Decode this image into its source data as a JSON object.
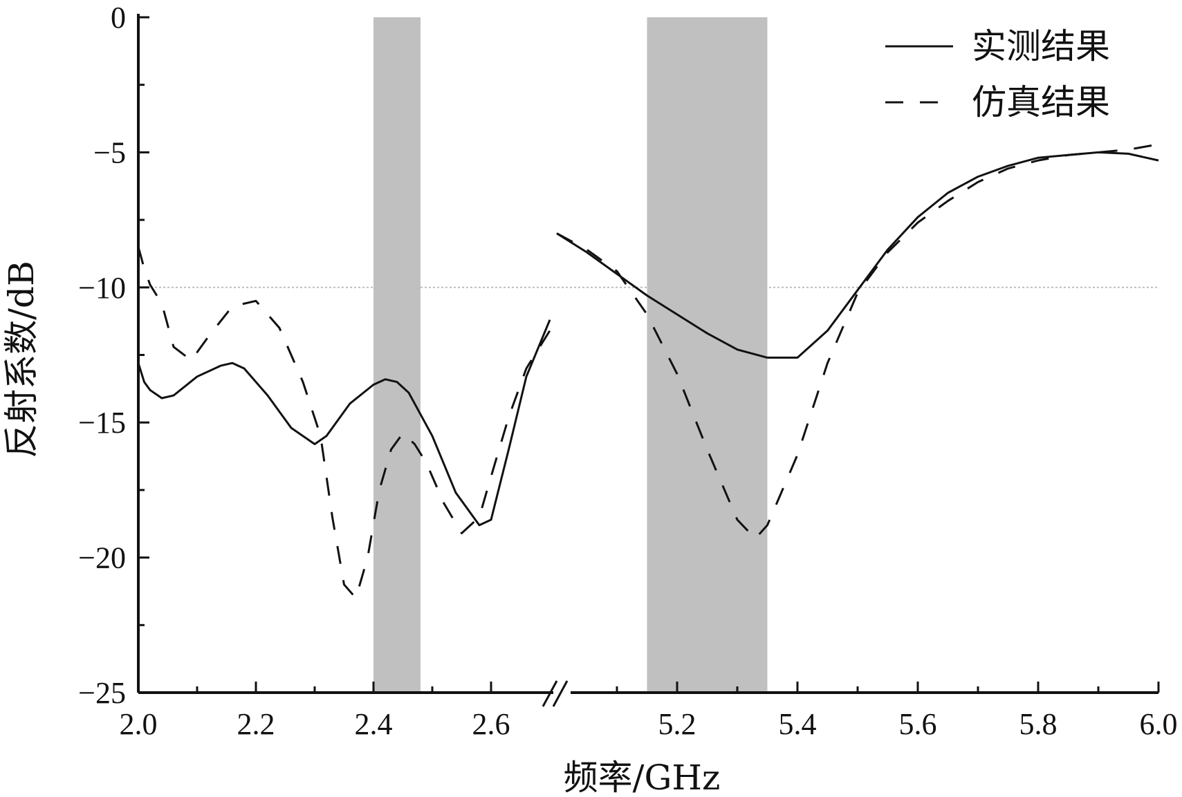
{
  "chart_data": {
    "type": "line",
    "xlabel": "频率/GHz",
    "ylabel": "反射系数/dB",
    "ylim": [
      -25,
      0
    ],
    "yticks": [
      "0",
      "−5",
      "−10",
      "−15",
      "−20",
      "−25"
    ],
    "reference_line_y": -10,
    "broken_x_axis": true,
    "x_segments": [
      {
        "range": [
          2.0,
          2.7
        ],
        "tick_labels": [
          "2.0",
          "2.2",
          "2.4",
          "2.6"
        ],
        "tick_values": [
          2.0,
          2.2,
          2.4,
          2.6
        ]
      },
      {
        "range": [
          5.0,
          6.0
        ],
        "tick_labels": [
          "5.2",
          "5.4",
          "5.6",
          "5.8",
          "6.0"
        ],
        "tick_values": [
          5.2,
          5.4,
          5.6,
          5.8,
          6.0
        ]
      }
    ],
    "shaded_bands": [
      {
        "x": [
          2.4,
          2.48
        ],
        "color": "#c0c0c0"
      },
      {
        "x": [
          5.15,
          5.35
        ],
        "color": "#c0c0c0"
      }
    ],
    "legend": {
      "placement": "top-right"
    },
    "series": [
      {
        "name": "实测结果",
        "style": "solid",
        "color": "#111111",
        "segments": [
          {
            "x": [
              2.0,
              2.01,
              2.02,
              2.04,
              2.06,
              2.1,
              2.14,
              2.16,
              2.18,
              2.22,
              2.26,
              2.3,
              2.32,
              2.36,
              2.4,
              2.42,
              2.44,
              2.46,
              2.5,
              2.54,
              2.58,
              2.6,
              2.63,
              2.66,
              2.7
            ],
            "y": [
              -12.8,
              -13.5,
              -13.8,
              -14.1,
              -14.0,
              -13.3,
              -12.9,
              -12.8,
              -13.0,
              -14.0,
              -15.2,
              -15.8,
              -15.5,
              -14.3,
              -13.6,
              -13.4,
              -13.5,
              -13.9,
              -15.5,
              -17.6,
              -18.8,
              -18.6,
              -16.0,
              -13.3,
              -11.2
            ]
          },
          {
            "x": [
              5.0,
              5.05,
              5.1,
              5.15,
              5.2,
              5.25,
              5.3,
              5.35,
              5.4,
              5.45,
              5.5,
              5.55,
              5.6,
              5.65,
              5.7,
              5.75,
              5.8,
              5.85,
              5.9,
              5.95,
              6.0
            ],
            "y": [
              -8.0,
              -8.7,
              -9.5,
              -10.3,
              -11.0,
              -11.7,
              -12.3,
              -12.6,
              -12.6,
              -11.6,
              -10.1,
              -8.6,
              -7.4,
              -6.5,
              -5.9,
              -5.5,
              -5.2,
              -5.1,
              -5.0,
              -5.05,
              -5.3
            ]
          }
        ]
      },
      {
        "name": "仿真结果",
        "style": "dashed",
        "color": "#111111",
        "segments": [
          {
            "x": [
              2.0,
              2.01,
              2.02,
              2.04,
              2.06,
              2.09,
              2.12,
              2.16,
              2.2,
              2.24,
              2.28,
              2.31,
              2.33,
              2.35,
              2.37,
              2.39,
              2.41,
              2.43,
              2.45,
              2.47,
              2.49,
              2.52,
              2.55,
              2.58,
              2.6,
              2.63,
              2.66,
              2.7
            ],
            "y": [
              -8.5,
              -9.3,
              -9.9,
              -10.6,
              -12.2,
              -12.7,
              -11.8,
              -10.7,
              -10.5,
              -11.5,
              -13.5,
              -15.5,
              -18.5,
              -21.0,
              -21.5,
              -20.0,
              -17.5,
              -16.0,
              -15.4,
              -15.8,
              -16.5,
              -18.0,
              -19.1,
              -18.5,
              -17.0,
              -14.8,
              -13.0,
              -11.6
            ]
          },
          {
            "x": [
              5.0,
              5.05,
              5.1,
              5.15,
              5.2,
              5.25,
              5.3,
              5.33,
              5.35,
              5.4,
              5.45,
              5.5,
              5.55,
              5.6,
              5.65,
              5.7,
              5.75,
              5.8,
              5.85,
              5.9,
              5.95,
              6.0
            ],
            "y": [
              -8.0,
              -8.6,
              -9.4,
              -11.0,
              -13.2,
              -16.0,
              -18.6,
              -19.3,
              -18.8,
              -16.2,
              -12.8,
              -10.2,
              -8.7,
              -7.6,
              -6.8,
              -6.1,
              -5.6,
              -5.3,
              -5.1,
              -5.0,
              -4.9,
              -4.7
            ]
          }
        ]
      }
    ]
  }
}
